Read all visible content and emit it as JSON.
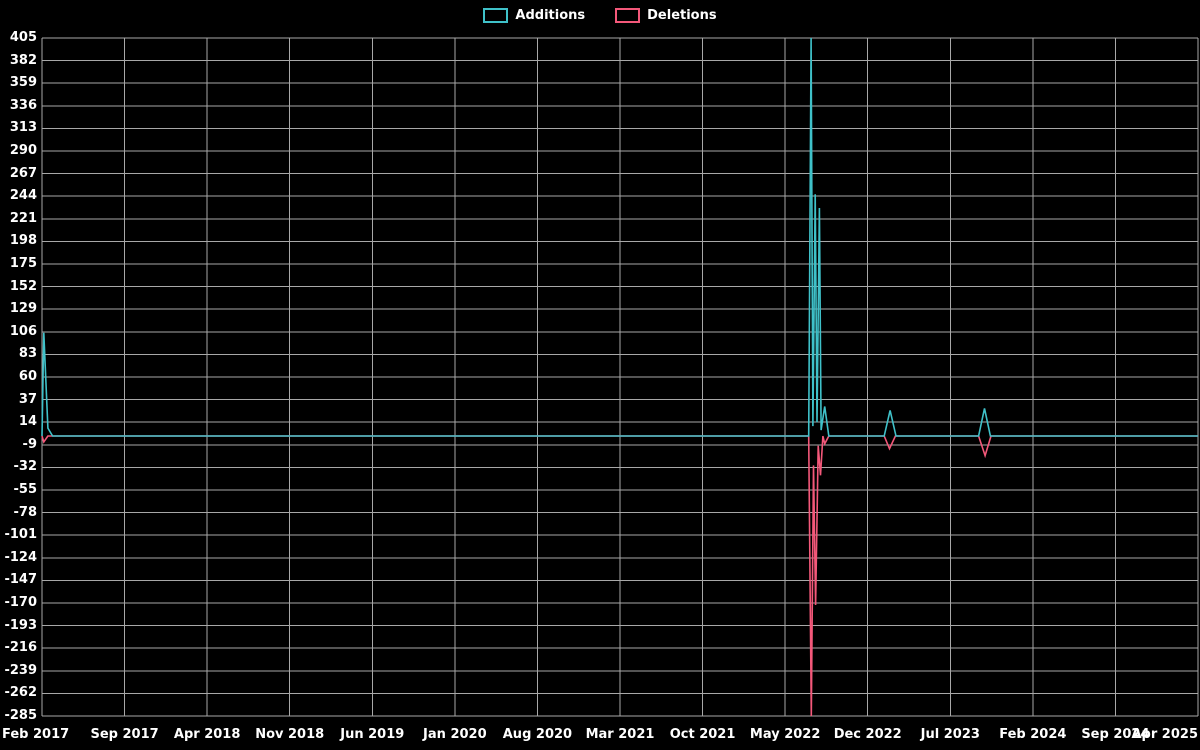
{
  "chart_data": {
    "type": "line",
    "title": "",
    "legend_position": "top-center",
    "background_color": "#000000",
    "grid_color": "#a8a8a8",
    "text_color": "#ffffff",
    "grid": true,
    "x_tick_labels": [
      "Feb 2017",
      "Sep 2017",
      "Apr 2018",
      "Nov 2018",
      "Jun 2019",
      "Jan 2020",
      "Aug 2020",
      "Mar 2021",
      "Oct 2021",
      "May 2022",
      "Dec 2022",
      "Jul 2023",
      "Feb 2024",
      "Sep 2024",
      "Apr 2025"
    ],
    "x_tick_interval_months": 7,
    "xlim_months": [
      0,
      98
    ],
    "y_ticks": [
      405,
      382,
      359,
      336,
      313,
      290,
      267,
      244,
      221,
      198,
      175,
      152,
      129,
      106,
      83,
      60,
      37,
      14,
      -9,
      -32,
      -55,
      -78,
      -101,
      -124,
      -147,
      -170,
      -193,
      -216,
      -239,
      -262,
      -285
    ],
    "ylim": [
      -285,
      405
    ],
    "series": [
      {
        "name": "Additions",
        "color": "#3fc1c9",
        "points": [
          [
            0,
            0
          ],
          [
            0.15,
            105
          ],
          [
            0.5,
            8
          ],
          [
            0.9,
            0
          ],
          [
            64.5,
            0
          ],
          [
            65.0,
            0
          ],
          [
            65.2,
            405
          ],
          [
            65.35,
            10
          ],
          [
            65.55,
            246
          ],
          [
            65.7,
            14
          ],
          [
            65.9,
            232
          ],
          [
            66.05,
            6
          ],
          [
            66.35,
            30
          ],
          [
            66.7,
            0
          ],
          [
            71.4,
            0
          ],
          [
            71.9,
            26
          ],
          [
            72.4,
            0
          ],
          [
            79.4,
            0
          ],
          [
            79.9,
            28
          ],
          [
            80.4,
            0
          ],
          [
            98,
            0
          ]
        ]
      },
      {
        "name": "Deletions",
        "color": "#f4587a",
        "points": [
          [
            0,
            0
          ],
          [
            0.15,
            -6
          ],
          [
            0.5,
            0
          ],
          [
            64.5,
            0
          ],
          [
            65.0,
            0
          ],
          [
            65.22,
            -285
          ],
          [
            65.4,
            -30
          ],
          [
            65.58,
            -172
          ],
          [
            65.8,
            -10
          ],
          [
            66.0,
            -40
          ],
          [
            66.2,
            0
          ],
          [
            66.35,
            -8
          ],
          [
            66.7,
            0
          ],
          [
            71.4,
            0
          ],
          [
            71.85,
            -13
          ],
          [
            72.35,
            0
          ],
          [
            79.4,
            0
          ],
          [
            79.95,
            -20
          ],
          [
            80.45,
            0
          ],
          [
            98,
            0
          ]
        ]
      }
    ]
  }
}
